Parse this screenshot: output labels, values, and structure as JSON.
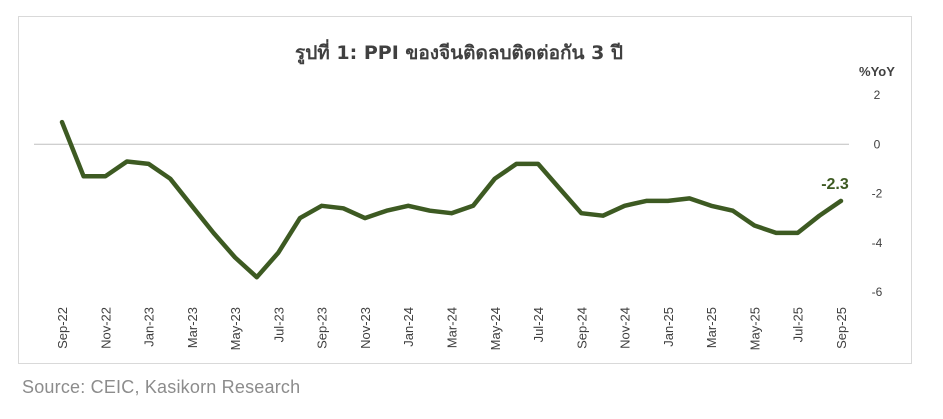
{
  "chart_data": {
    "type": "line",
    "title": "รูปที่ 1: PPI ของจีนติดลบติดต่อกัน 3 ปี",
    "ylabel": "%YoY",
    "ylim": [
      -6,
      2
    ],
    "yticks": [
      2,
      0,
      -2,
      -4,
      -6
    ],
    "grid": false,
    "x": [
      "Sep-22",
      "Oct-22",
      "Nov-22",
      "Dec-22",
      "Jan-23",
      "Feb-23",
      "Mar-23",
      "Apr-23",
      "May-23",
      "Jun-23",
      "Jul-23",
      "Aug-23",
      "Sep-23",
      "Oct-23",
      "Nov-23",
      "Dec-23",
      "Jan-24",
      "Feb-24",
      "Mar-24",
      "Apr-24",
      "May-24",
      "Jun-24",
      "Jul-24",
      "Aug-24",
      "Sep-24",
      "Oct-24",
      "Nov-24",
      "Dec-24",
      "Jan-25",
      "Feb-25",
      "Mar-25",
      "Apr-25",
      "May-25",
      "Jun-25",
      "Jul-25",
      "Aug-25",
      "Sep-25"
    ],
    "xtick_labels": [
      "Sep-22",
      "Nov-22",
      "Jan-23",
      "Mar-23",
      "May-23",
      "Jul-23",
      "Sep-23",
      "Nov-23",
      "Jan-24",
      "Mar-24",
      "May-24",
      "Jul-24",
      "Sep-24",
      "Nov-24",
      "Jan-25",
      "Mar-25",
      "May-25",
      "Jul-25",
      "Sep-25"
    ],
    "series": [
      {
        "name": "",
        "color": "#3d5a22",
        "values": [
          0.9,
          -1.3,
          -1.3,
          -0.7,
          -0.8,
          -1.4,
          -2.5,
          -3.6,
          -4.6,
          -5.4,
          -4.4,
          -3.0,
          -2.5,
          -2.6,
          -3.0,
          -2.7,
          -2.5,
          -2.7,
          -2.8,
          -2.5,
          -1.4,
          -0.8,
          -0.8,
          -1.8,
          -2.8,
          -2.9,
          -2.5,
          -2.3,
          -2.3,
          -2.2,
          -2.5,
          -2.7,
          -3.3,
          -3.6,
          -3.6,
          -2.9,
          -2.3
        ]
      }
    ],
    "annotations": [
      {
        "text": "-2.3",
        "at": "Sep-25",
        "color": "#3d5a22"
      }
    ]
  },
  "source": "Source: CEIC, Kasikorn Research"
}
